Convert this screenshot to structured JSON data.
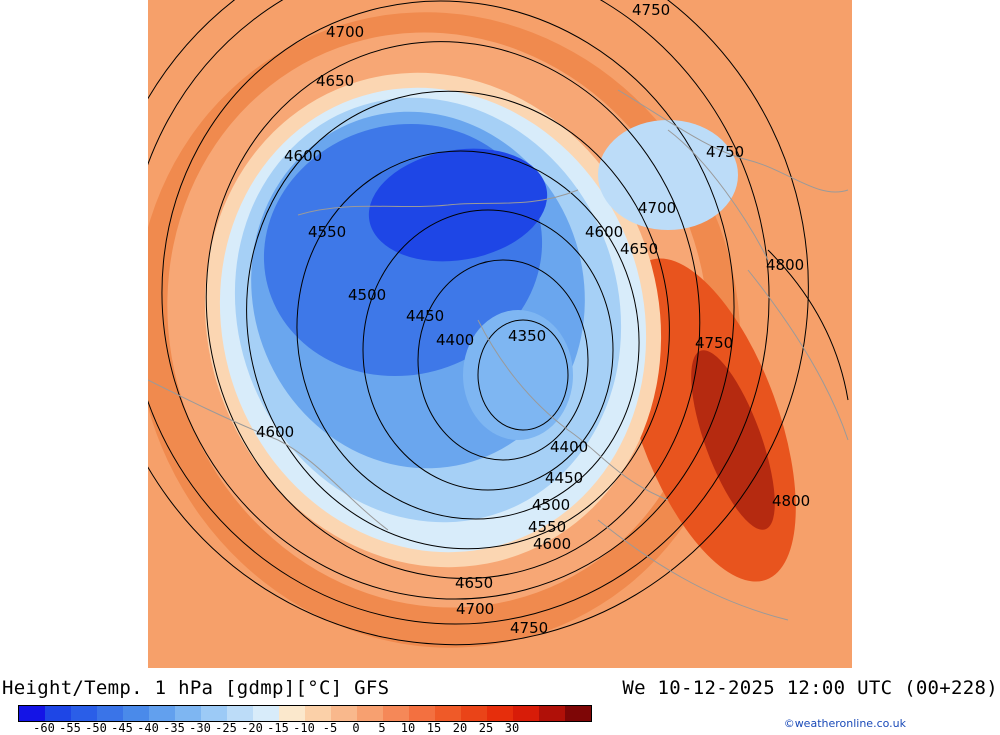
{
  "header": {
    "title": "Height/Temp. 1 hPa [gdmp][°C] GFS",
    "datetime": "We 10-12-2025 12:00 UTC (00+228)"
  },
  "credit": "©weatheronline.co.uk",
  "legend": {
    "colors": [
      "#1414e6",
      "#1e46e6",
      "#2a5ee8",
      "#3a74e8",
      "#4a8aea",
      "#62a0ee",
      "#7eb6f2",
      "#9ccaf6",
      "#bcdcf8",
      "#d8ecfa",
      "#fbe8cc",
      "#fbd0a8",
      "#f9b88c",
      "#f7a070",
      "#f58858",
      "#f37040",
      "#ef5a28",
      "#ea4418",
      "#e62e0c",
      "#d81c08",
      "#b01008",
      "#7e0606"
    ],
    "tick_labels": [
      "-60",
      "-55",
      "-50",
      "-45",
      "-40",
      "-35",
      "-30",
      "-25",
      "-20",
      "-15",
      "-10",
      "-5",
      "0",
      "5",
      "10",
      "15",
      "20",
      "25",
      "30"
    ]
  },
  "contour_labels": [
    "4750",
    "4700",
    "4650",
    "4600",
    "4550",
    "4500",
    "4450",
    "4400",
    "4350",
    "4750",
    "4700",
    "4600",
    "4650",
    "4800",
    "4750",
    "4600",
    "4400",
    "4450",
    "4500",
    "4550",
    "4600",
    "4650",
    "4700",
    "4750",
    "4800"
  ],
  "map_data": {
    "field": "geopotential height (gdmp) and temperature (°C)",
    "level": "1 hPa",
    "model": "GFS",
    "contour_values_gdmp": [
      4350,
      4400,
      4450,
      4500,
      4550,
      4600,
      4650,
      4700,
      4750,
      4800
    ]
  }
}
